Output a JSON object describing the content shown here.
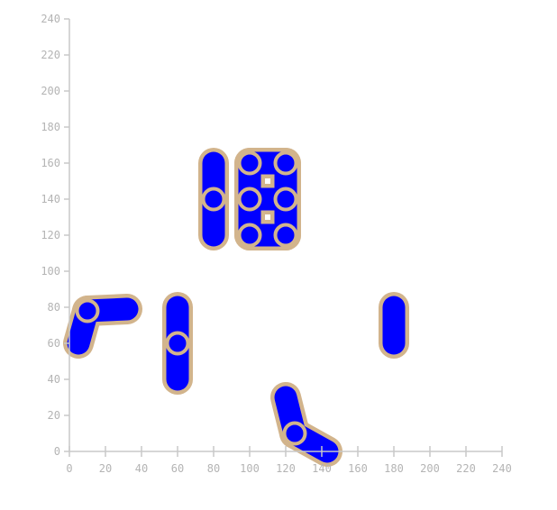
{
  "chart_data": {
    "type": "scatter",
    "title": "",
    "xlabel": "",
    "ylabel": "",
    "xlim": [
      0,
      240
    ],
    "ylim": [
      0,
      240
    ],
    "x_ticks": [
      0,
      20,
      40,
      60,
      80,
      100,
      120,
      140,
      160,
      180,
      200,
      220,
      240
    ],
    "y_ticks": [
      0,
      20,
      40,
      60,
      80,
      100,
      120,
      140,
      160,
      180,
      200,
      220,
      240
    ],
    "x_tick_labels": [
      "0",
      "20",
      "40",
      "60",
      "80",
      "100",
      "120",
      "140",
      "160",
      "180",
      "200",
      "220",
      "240"
    ],
    "y_tick_labels": [
      "0",
      "20",
      "40",
      "60",
      "80",
      "100",
      "120",
      "140",
      "160",
      "180",
      "200",
      "220",
      "240"
    ],
    "grid": false,
    "marker_fill": "#0000ff",
    "marker_outline": "#d2b48c",
    "connectors": [
      [
        [
          5,
          60
        ],
        [
          10,
          78
        ]
      ],
      [
        [
          10,
          78
        ],
        [
          32,
          79
        ]
      ],
      [
        [
          60,
          80
        ],
        [
          60,
          60
        ]
      ],
      [
        [
          60,
          60
        ],
        [
          60,
          40
        ]
      ],
      [
        [
          80,
          160
        ],
        [
          80,
          140
        ]
      ],
      [
        [
          80,
          140
        ],
        [
          80,
          120
        ]
      ],
      [
        [
          100,
          160
        ],
        [
          120,
          160
        ]
      ],
      [
        [
          100,
          160
        ],
        [
          100,
          140
        ]
      ],
      [
        [
          120,
          160
        ],
        [
          120,
          140
        ]
      ],
      [
        [
          100,
          140
        ],
        [
          120,
          140
        ]
      ],
      [
        [
          100,
          140
        ],
        [
          100,
          120
        ]
      ],
      [
        [
          120,
          140
        ],
        [
          120,
          120
        ]
      ],
      [
        [
          100,
          120
        ],
        [
          120,
          120
        ]
      ],
      [
        [
          120,
          30
        ],
        [
          125,
          10
        ]
      ],
      [
        [
          125,
          10
        ],
        [
          143,
          0
        ]
      ],
      [
        [
          180,
          80
        ],
        [
          180,
          60
        ]
      ]
    ],
    "points": [
      {
        "x": 10,
        "y": 78
      },
      {
        "x": 60,
        "y": 60
      },
      {
        "x": 80,
        "y": 140
      },
      {
        "x": 100,
        "y": 160
      },
      {
        "x": 120,
        "y": 160
      },
      {
        "x": 100,
        "y": 140
      },
      {
        "x": 120,
        "y": 140
      },
      {
        "x": 100,
        "y": 120
      },
      {
        "x": 120,
        "y": 120
      },
      {
        "x": 125,
        "y": 10
      }
    ]
  }
}
